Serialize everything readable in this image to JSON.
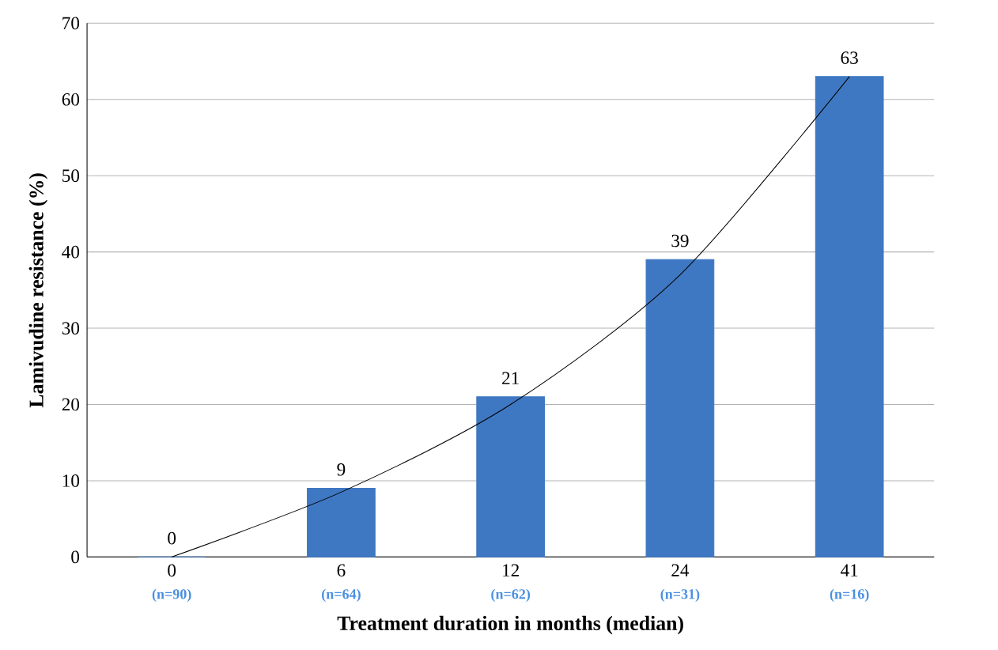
{
  "chart_data": {
    "type": "bar",
    "xlabel": "Treatment duration in months (median)",
    "ylabel": "Lamivudine resistance (%)",
    "categories": [
      "0",
      "6",
      "12",
      "24",
      "41"
    ],
    "series": [
      {
        "color": "#3f78c2",
        "values": [
          0,
          9,
          21,
          39,
          63
        ],
        "value_labels": [
          "0",
          "9",
          "21",
          "39",
          "63"
        ]
      },
      {
        "type": "line",
        "color": "#000000",
        "x": [
          "0",
          "6",
          "12",
          "24",
          "41"
        ],
        "values": [
          0,
          8.5,
          20,
          37,
          63
        ]
      }
    ],
    "ylim": [
      0,
      70
    ],
    "yticks": [
      0,
      10,
      20,
      30,
      40,
      50,
      60,
      70
    ],
    "grid": "y",
    "annotations": [
      "(n=90)",
      "(n=64)",
      "(n=62)",
      "(n=31)",
      "(n=16)"
    ]
  }
}
